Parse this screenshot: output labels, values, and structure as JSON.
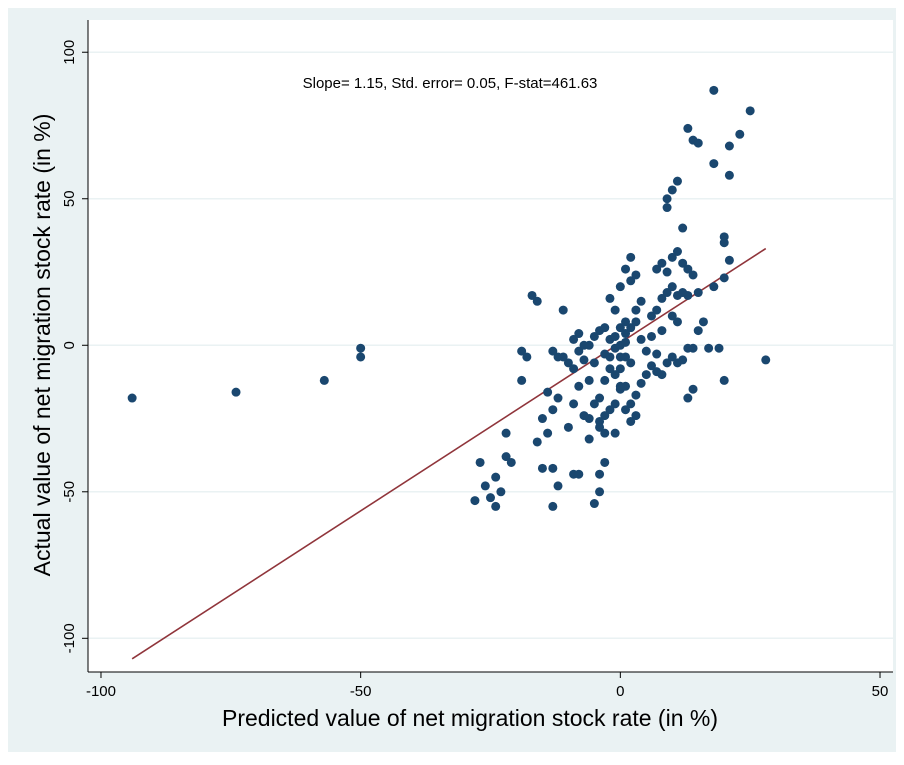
{
  "chart_data": {
    "type": "scatter",
    "annotation": "Slope= 1.15, Std. error= 0.05,  F-stat=461.63",
    "x_label": "Predicted  value of net migration stock rate (in %)",
    "y_label": "Actual value of net migration stock rate (in %)",
    "xlim": [
      -102.5,
      52.5
    ],
    "xticks": [
      -100,
      -50,
      0,
      50
    ],
    "ylim": [
      -111.5,
      111
    ],
    "yticks": [
      -100,
      -50,
      0,
      50,
      100
    ],
    "grid": true,
    "points": {
      "color": "#1a476f",
      "x": [
        -94,
        -74,
        -57,
        -50,
        -50,
        18,
        25,
        13,
        14,
        15,
        23,
        21,
        18,
        21,
        11,
        10,
        9,
        9,
        12,
        20,
        20,
        -28,
        -27,
        -26,
        -25,
        -24,
        -23,
        -24,
        -22,
        -22,
        -21,
        -13,
        -12,
        -13,
        -15,
        -16,
        -14,
        -15,
        -13,
        -12,
        -10,
        -9,
        -8,
        -6,
        -5,
        -4,
        -4,
        -3,
        -9,
        -8,
        -17,
        -16,
        -11,
        -19,
        -18,
        -19,
        -14,
        -12,
        -10,
        -8,
        -6,
        -5,
        -4,
        -3,
        -2,
        -1,
        0,
        1,
        2,
        3,
        1,
        2,
        0,
        -1,
        -2,
        -3,
        -4,
        -5,
        -6,
        -7,
        0,
        1,
        2,
        3,
        4,
        5,
        6,
        5,
        4,
        3,
        4,
        6,
        7,
        8,
        9,
        10,
        11,
        12,
        13,
        7,
        8,
        9,
        10,
        11,
        12,
        13,
        14,
        15,
        2,
        1,
        2,
        3,
        0,
        -1,
        -2,
        3,
        2,
        1,
        -1,
        -2,
        -3,
        -4,
        -1,
        0,
        13,
        14,
        14,
        13,
        8,
        7,
        9,
        10,
        11,
        12,
        19,
        20,
        28,
        17,
        -4,
        -6,
        -3,
        0,
        1,
        -1,
        -2,
        0,
        1,
        -3,
        -5,
        -7,
        -9,
        -11,
        -13,
        6,
        7,
        8,
        10,
        11,
        15,
        16,
        18,
        20,
        21,
        -7,
        -8,
        -9
      ],
      "y": [
        -18,
        -16,
        -12,
        -1,
        -4,
        87,
        80,
        74,
        70,
        69,
        72,
        68,
        62,
        58,
        56,
        53,
        50,
        47,
        40,
        37,
        35,
        -53,
        -40,
        -48,
        -52,
        -55,
        -50,
        -45,
        -38,
        -30,
        -40,
        -55,
        -48,
        -42,
        -42,
        -33,
        -30,
        -25,
        -22,
        -18,
        -28,
        -20,
        -14,
        -12,
        -54,
        -50,
        -44,
        -40,
        -44,
        -44,
        17,
        15,
        12,
        -2,
        -4,
        -12,
        -16,
        -4,
        -6,
        -2,
        0,
        3,
        5,
        -3,
        2,
        -1,
        0,
        4,
        6,
        8,
        -4,
        -6,
        -8,
        -10,
        -8,
        -12,
        -18,
        -20,
        -25,
        -24,
        -15,
        -14,
        -20,
        -17,
        -13,
        -10,
        -7,
        -2,
        2,
        12,
        15,
        10,
        12,
        16,
        18,
        20,
        17,
        18,
        17,
        26,
        28,
        25,
        30,
        32,
        28,
        26,
        24,
        18,
        30,
        26,
        22,
        24,
        20,
        12,
        16,
        -24,
        -26,
        -22,
        -20,
        -22,
        -24,
        -26,
        -30,
        -14,
        -1,
        -1,
        -15,
        -18,
        -10,
        -9,
        -6,
        -4,
        -6,
        -5,
        -1,
        -12,
        -5,
        -1,
        -28,
        -32,
        -30,
        -4,
        1,
        3,
        -4,
        6,
        8,
        6,
        -6,
        -5,
        -8,
        -4,
        -2,
        3,
        -3,
        5,
        10,
        8,
        5,
        8,
        20,
        23,
        29,
        0,
        4,
        2
      ]
    },
    "fit_line": {
      "color": "#90353b",
      "x": [
        -94,
        28
      ],
      "y": [
        -107,
        33
      ]
    }
  }
}
